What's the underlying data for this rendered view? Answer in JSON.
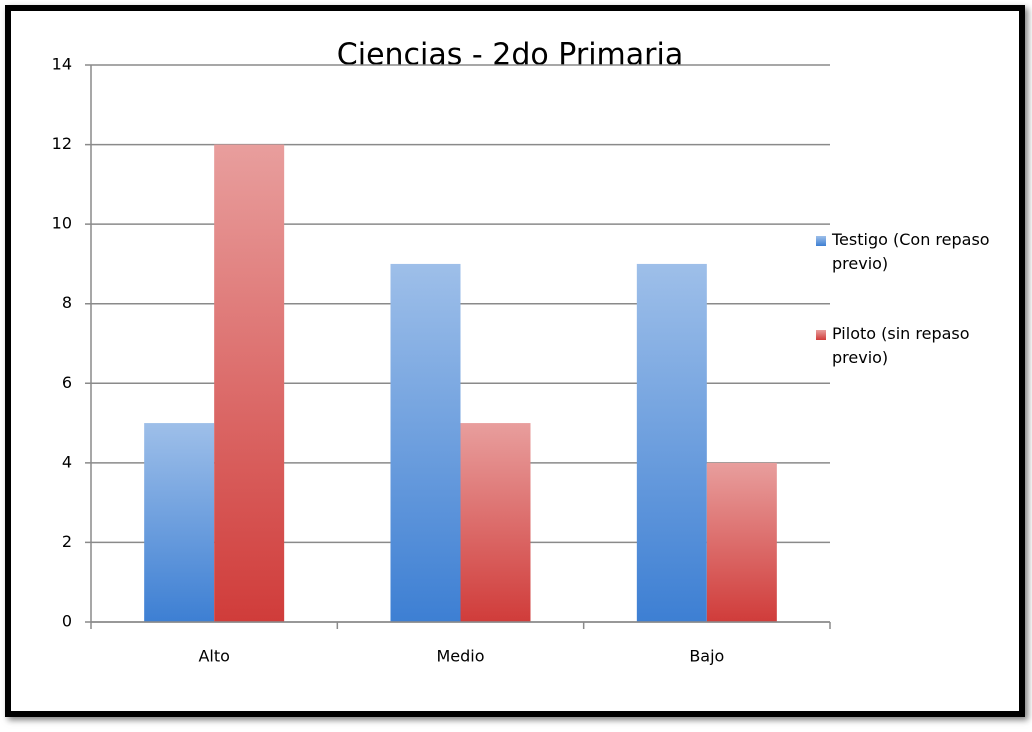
{
  "chart_data": {
    "type": "bar",
    "title": "Ciencias - 2do Primaria",
    "categories": [
      "Alto",
      "Medio",
      "Bajo"
    ],
    "series": [
      {
        "name": "Testigo (Con repaso previo)",
        "color": "#3d7fd3",
        "values": [
          5,
          9,
          9
        ]
      },
      {
        "name": "Piloto (sin repaso previo)",
        "color": "#d03c3a",
        "values": [
          12,
          5,
          4
        ]
      }
    ],
    "ylim": [
      0,
      14
    ],
    "yticks": [
      0,
      2,
      4,
      6,
      8,
      10,
      12,
      14
    ],
    "grid": true,
    "legend": "right"
  }
}
